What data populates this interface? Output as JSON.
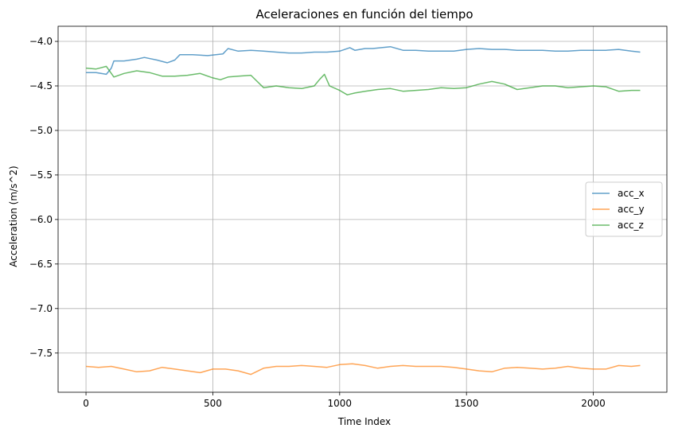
{
  "chart_data": {
    "type": "line",
    "title": "Aceleraciones en función del tiempo",
    "xlabel": "Time Index",
    "ylabel": "Acceleration (m/s^2)",
    "xlim": [
      -110,
      2290
    ],
    "ylim": [
      -7.94,
      -3.83
    ],
    "xticks": [
      0,
      500,
      1000,
      1500,
      2000
    ],
    "yticks": [
      -4.0,
      -4.5,
      -5.0,
      -5.5,
      -6.0,
      -6.5,
      -7.0,
      -7.5
    ],
    "grid": true,
    "legend_position": "center-right",
    "series": [
      {
        "name": "acc_x",
        "color": "#1f77b4",
        "points": [
          [
            0,
            -4.35
          ],
          [
            40,
            -4.35
          ],
          [
            80,
            -4.37
          ],
          [
            100,
            -4.3
          ],
          [
            110,
            -4.22
          ],
          [
            150,
            -4.22
          ],
          [
            200,
            -4.2
          ],
          [
            230,
            -4.18
          ],
          [
            280,
            -4.21
          ],
          [
            320,
            -4.24
          ],
          [
            350,
            -4.21
          ],
          [
            370,
            -4.15
          ],
          [
            420,
            -4.15
          ],
          [
            480,
            -4.16
          ],
          [
            540,
            -4.14
          ],
          [
            560,
            -4.08
          ],
          [
            600,
            -4.11
          ],
          [
            650,
            -4.1
          ],
          [
            700,
            -4.11
          ],
          [
            750,
            -4.12
          ],
          [
            800,
            -4.13
          ],
          [
            850,
            -4.13
          ],
          [
            900,
            -4.12
          ],
          [
            950,
            -4.12
          ],
          [
            1000,
            -4.11
          ],
          [
            1040,
            -4.07
          ],
          [
            1060,
            -4.1
          ],
          [
            1100,
            -4.08
          ],
          [
            1130,
            -4.08
          ],
          [
            1200,
            -4.06
          ],
          [
            1250,
            -4.1
          ],
          [
            1300,
            -4.1
          ],
          [
            1350,
            -4.11
          ],
          [
            1400,
            -4.11
          ],
          [
            1450,
            -4.11
          ],
          [
            1500,
            -4.09
          ],
          [
            1550,
            -4.08
          ],
          [
            1600,
            -4.09
          ],
          [
            1650,
            -4.09
          ],
          [
            1700,
            -4.1
          ],
          [
            1750,
            -4.1
          ],
          [
            1800,
            -4.1
          ],
          [
            1850,
            -4.11
          ],
          [
            1900,
            -4.11
          ],
          [
            1950,
            -4.1
          ],
          [
            2000,
            -4.1
          ],
          [
            2050,
            -4.1
          ],
          [
            2100,
            -4.09
          ],
          [
            2150,
            -4.11
          ],
          [
            2185,
            -4.12
          ]
        ]
      },
      {
        "name": "acc_y",
        "color": "#ff7f0e",
        "points": [
          [
            0,
            -7.65
          ],
          [
            50,
            -7.66
          ],
          [
            100,
            -7.65
          ],
          [
            150,
            -7.68
          ],
          [
            200,
            -7.71
          ],
          [
            250,
            -7.7
          ],
          [
            300,
            -7.66
          ],
          [
            350,
            -7.68
          ],
          [
            400,
            -7.7
          ],
          [
            450,
            -7.72
          ],
          [
            500,
            -7.68
          ],
          [
            550,
            -7.68
          ],
          [
            600,
            -7.7
          ],
          [
            650,
            -7.74
          ],
          [
            700,
            -7.67
          ],
          [
            750,
            -7.65
          ],
          [
            800,
            -7.65
          ],
          [
            850,
            -7.64
          ],
          [
            900,
            -7.65
          ],
          [
            950,
            -7.66
          ],
          [
            1000,
            -7.63
          ],
          [
            1050,
            -7.62
          ],
          [
            1100,
            -7.64
          ],
          [
            1150,
            -7.67
          ],
          [
            1200,
            -7.65
          ],
          [
            1250,
            -7.64
          ],
          [
            1300,
            -7.65
          ],
          [
            1350,
            -7.65
          ],
          [
            1400,
            -7.65
          ],
          [
            1450,
            -7.66
          ],
          [
            1500,
            -7.68
          ],
          [
            1550,
            -7.7
          ],
          [
            1600,
            -7.71
          ],
          [
            1650,
            -7.67
          ],
          [
            1700,
            -7.66
          ],
          [
            1750,
            -7.67
          ],
          [
            1800,
            -7.68
          ],
          [
            1850,
            -7.67
          ],
          [
            1900,
            -7.65
          ],
          [
            1950,
            -7.67
          ],
          [
            2000,
            -7.68
          ],
          [
            2050,
            -7.68
          ],
          [
            2100,
            -7.64
          ],
          [
            2150,
            -7.65
          ],
          [
            2185,
            -7.64
          ]
        ]
      },
      {
        "name": "acc_z",
        "color": "#2ca02c",
        "points": [
          [
            0,
            -4.3
          ],
          [
            40,
            -4.31
          ],
          [
            80,
            -4.28
          ],
          [
            100,
            -4.36
          ],
          [
            110,
            -4.4
          ],
          [
            150,
            -4.36
          ],
          [
            200,
            -4.33
          ],
          [
            250,
            -4.35
          ],
          [
            300,
            -4.39
          ],
          [
            350,
            -4.39
          ],
          [
            400,
            -4.38
          ],
          [
            450,
            -4.36
          ],
          [
            500,
            -4.41
          ],
          [
            530,
            -4.43
          ],
          [
            560,
            -4.4
          ],
          [
            600,
            -4.39
          ],
          [
            650,
            -4.38
          ],
          [
            700,
            -4.52
          ],
          [
            750,
            -4.5
          ],
          [
            800,
            -4.52
          ],
          [
            850,
            -4.53
          ],
          [
            900,
            -4.5
          ],
          [
            920,
            -4.43
          ],
          [
            940,
            -4.37
          ],
          [
            960,
            -4.5
          ],
          [
            1000,
            -4.55
          ],
          [
            1030,
            -4.6
          ],
          [
            1060,
            -4.58
          ],
          [
            1100,
            -4.56
          ],
          [
            1150,
            -4.54
          ],
          [
            1200,
            -4.53
          ],
          [
            1250,
            -4.56
          ],
          [
            1300,
            -4.55
          ],
          [
            1350,
            -4.54
          ],
          [
            1400,
            -4.52
          ],
          [
            1450,
            -4.53
          ],
          [
            1500,
            -4.52
          ],
          [
            1550,
            -4.48
          ],
          [
            1600,
            -4.45
          ],
          [
            1650,
            -4.48
          ],
          [
            1700,
            -4.54
          ],
          [
            1750,
            -4.52
          ],
          [
            1800,
            -4.5
          ],
          [
            1850,
            -4.5
          ],
          [
            1900,
            -4.52
          ],
          [
            1950,
            -4.51
          ],
          [
            2000,
            -4.5
          ],
          [
            2050,
            -4.51
          ],
          [
            2100,
            -4.56
          ],
          [
            2150,
            -4.55
          ],
          [
            2185,
            -4.55
          ]
        ]
      }
    ]
  }
}
